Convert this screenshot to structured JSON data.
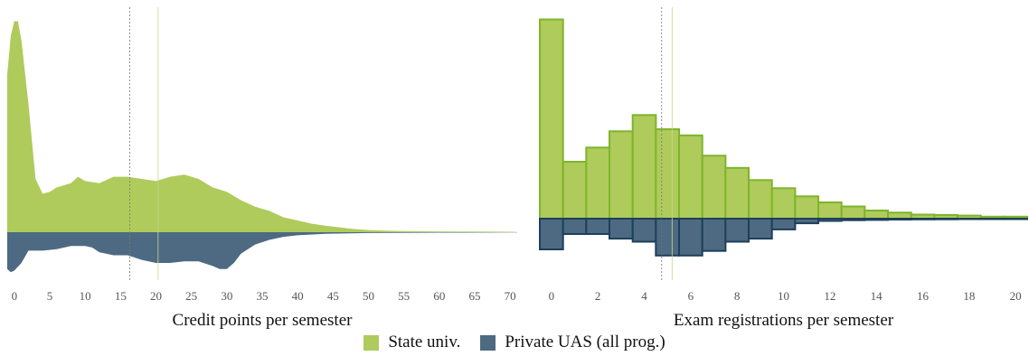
{
  "colors": {
    "state": "#aecb5c",
    "state_edge": "#7fb42a",
    "private": "#4d6a82",
    "private_edge": "#1e3f5a"
  },
  "legend": [
    {
      "label": "State univ.",
      "color": "#aecb5c"
    },
    {
      "label": "Private UAS (all prog.)",
      "color": "#4d6a82"
    }
  ],
  "chart_data": [
    {
      "type": "area",
      "xlabel": "Credit points per semester",
      "xlim": [
        -1,
        71
      ],
      "xticks": [
        0,
        5,
        10,
        15,
        20,
        25,
        30,
        35,
        40,
        45,
        50,
        55,
        60,
        65,
        70
      ],
      "vlines": [
        16.3,
        20.3
      ],
      "series": [
        {
          "name": "State univ.",
          "direction": "up",
          "x": [
            -1,
            -0.5,
            0,
            0.5,
            1,
            2,
            3,
            4,
            5,
            6,
            8,
            9,
            10,
            12,
            14,
            16,
            18,
            20,
            22,
            24,
            26,
            28,
            30,
            32,
            34,
            36,
            38,
            40,
            42,
            44,
            46,
            48,
            50,
            52,
            55,
            60,
            65,
            70,
            71
          ],
          "y": [
            0.74,
            0.92,
            0.99,
            0.99,
            0.9,
            0.6,
            0.25,
            0.18,
            0.19,
            0.21,
            0.23,
            0.26,
            0.24,
            0.23,
            0.26,
            0.26,
            0.25,
            0.24,
            0.26,
            0.27,
            0.25,
            0.21,
            0.19,
            0.15,
            0.12,
            0.1,
            0.07,
            0.055,
            0.04,
            0.03,
            0.022,
            0.015,
            0.01,
            0.007,
            0.005,
            0.004,
            0.003,
            0.002,
            0.001
          ]
        },
        {
          "name": "Private UAS (all prog.)",
          "direction": "down",
          "x": [
            -1,
            -0.5,
            0,
            1,
            2,
            4,
            6,
            8,
            10,
            11,
            12,
            14,
            16,
            18,
            20,
            22,
            24,
            26,
            28,
            29,
            30,
            31,
            32,
            34,
            36,
            38,
            40,
            44,
            50,
            60,
            70,
            71
          ],
          "y": [
            0.24,
            0.26,
            0.25,
            0.2,
            0.12,
            0.12,
            0.11,
            0.09,
            0.09,
            0.1,
            0.13,
            0.15,
            0.15,
            0.18,
            0.2,
            0.2,
            0.19,
            0.19,
            0.22,
            0.24,
            0.24,
            0.2,
            0.14,
            0.08,
            0.05,
            0.03,
            0.02,
            0.01,
            0.005,
            0.003,
            0.002,
            0.001
          ]
        }
      ]
    },
    {
      "type": "bar",
      "xlabel": "Exam registrations per semester",
      "xlim": [
        -0.5,
        20.5
      ],
      "xticks": [
        0,
        2,
        4,
        6,
        8,
        10,
        12,
        14,
        16,
        18,
        20
      ],
      "vlines": [
        4.75,
        5.2
      ],
      "categories": [
        0,
        1,
        2,
        3,
        4,
        5,
        6,
        7,
        8,
        9,
        10,
        11,
        12,
        13,
        14,
        15,
        16,
        17,
        18,
        19,
        20
      ],
      "series": [
        {
          "name": "State univ.",
          "direction": "up",
          "values": [
            0.98,
            0.28,
            0.35,
            0.43,
            0.51,
            0.44,
            0.41,
            0.31,
            0.25,
            0.19,
            0.15,
            0.11,
            0.08,
            0.06,
            0.04,
            0.03,
            0.02,
            0.018,
            0.015,
            0.01,
            0.01
          ]
        },
        {
          "name": "Private UAS (all prog.)",
          "direction": "down",
          "values": [
            0.2,
            0.1,
            0.1,
            0.13,
            0.15,
            0.24,
            0.24,
            0.21,
            0.15,
            0.13,
            0.07,
            0.03,
            0.015,
            0.01,
            0.008,
            0.006,
            0.005,
            0.004,
            0.003,
            0.003,
            0.003
          ]
        }
      ]
    }
  ]
}
